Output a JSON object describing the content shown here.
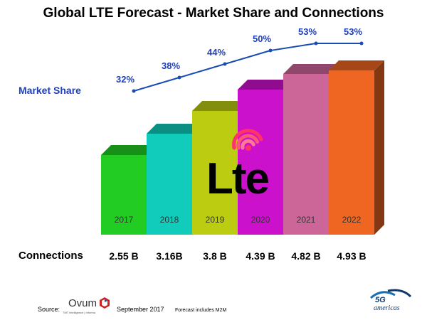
{
  "title": "Global LTE Forecast - Market Share and Connections",
  "market_share_label": "Market Share",
  "connections_label": "Connections",
  "source_label": "Source:",
  "source_name": "Ovum",
  "source_tagline": "TMT intelligence | Informa",
  "source_date": "September 2017",
  "footnote": "Forecast includes M2M",
  "lte_logo_text": "Lte",
  "brand_logo": {
    "top": "5G",
    "bottom": "americas"
  },
  "chart_data": {
    "type": "bar",
    "categories": [
      "2017",
      "2018",
      "2019",
      "2020",
      "2021",
      "2022"
    ],
    "series": [
      {
        "name": "Connections",
        "values": [
          2.55,
          3.16,
          3.8,
          4.39,
          4.82,
          4.93
        ],
        "labels": [
          "2.55 B",
          "3.16B",
          "3.8 B",
          "4.39 B",
          "4.82 B",
          "4.93 B"
        ]
      },
      {
        "name": "Market Share",
        "type": "line",
        "values": [
          32,
          38,
          44,
          50,
          53,
          53
        ],
        "labels": [
          "32%",
          "38%",
          "44%",
          "50%",
          "53%",
          "53%"
        ]
      }
    ],
    "bar_colors": [
      "#22cc22",
      "#11ccbb",
      "#bbcc11",
      "#cc11cc",
      "#cc6699",
      "#ee6622"
    ],
    "line_color": "#1a4db3",
    "label_color": "#1f3fbf"
  }
}
